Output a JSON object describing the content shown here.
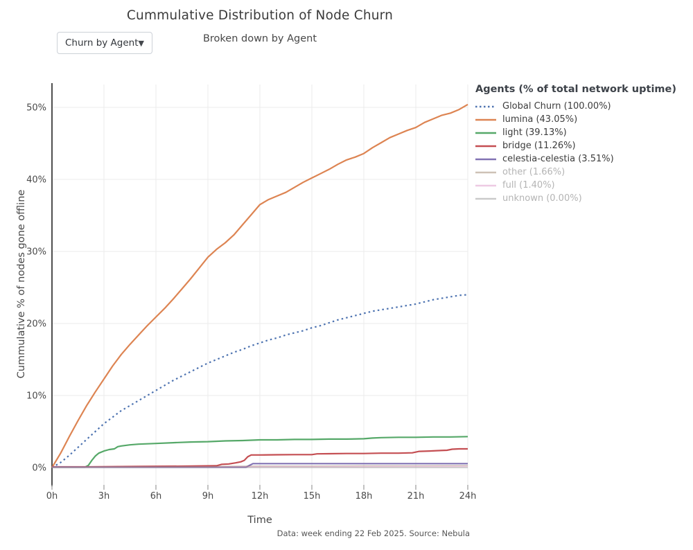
{
  "header": {
    "title": "Cummulative Distribution of Node Churn",
    "subtitle": "Broken down by Agent",
    "dropdown_label": "Churn by Agent",
    "dropdown_caret": "▼"
  },
  "footer": {
    "caption": "Data: week ending 22 Feb 2025. Source: Nebula"
  },
  "colors": {
    "grid": "#ebebeb",
    "axis_spine": "#3a3a3a",
    "tick_mark": "#9a9a9a",
    "tick_label": "#494949",
    "muted_legend_text": "#b4b4b4"
  },
  "chart_data": {
    "type": "line",
    "title": "Cummulative Distribution of Node Churn",
    "subtitle": "Broken down by Agent",
    "xlabel": "Time",
    "ylabel": "Cummulative % of nodes gone offline",
    "legend_title": "Agents (% of total network uptime)",
    "legend_position": "upper right, outside plot",
    "grid": true,
    "xlim": [
      0,
      24
    ],
    "ylim": [
      -2.5,
      53
    ],
    "x_tick_hours": [
      0,
      3,
      6,
      9,
      12,
      15,
      18,
      21,
      24
    ],
    "x_ticks": [
      "0h",
      "3h",
      "6h",
      "9h",
      "12h",
      "15h",
      "18h",
      "21h",
      "24h"
    ],
    "y_tick_values": [
      0,
      10,
      20,
      30,
      40,
      50
    ],
    "y_ticks": [
      "0%",
      "10%",
      "20%",
      "30%",
      "40%",
      "50%"
    ],
    "series": [
      {
        "name": "Global Churn",
        "legend_label": "Global Churn (100.00%)",
        "uptime_share_pct": 100.0,
        "color": "#4C72B0",
        "dash": "dotted",
        "muted": false,
        "points": [
          [
            0,
            0
          ],
          [
            0.5,
            0.7
          ],
          [
            1,
            1.7
          ],
          [
            1.5,
            2.8
          ],
          [
            2,
            3.9
          ],
          [
            2.5,
            5.0
          ],
          [
            3,
            6.1
          ],
          [
            3.5,
            7.0
          ],
          [
            4,
            7.9
          ],
          [
            4.5,
            8.6
          ],
          [
            5,
            9.3
          ],
          [
            5.5,
            10.0
          ],
          [
            6,
            10.7
          ],
          [
            6.5,
            11.4
          ],
          [
            7,
            12.1
          ],
          [
            7.5,
            12.7
          ],
          [
            8,
            13.3
          ],
          [
            8.5,
            13.9
          ],
          [
            9,
            14.5
          ],
          [
            9.5,
            15.0
          ],
          [
            10,
            15.5
          ],
          [
            10.5,
            16.0
          ],
          [
            11,
            16.4
          ],
          [
            11.5,
            16.9
          ],
          [
            12,
            17.3
          ],
          [
            12.5,
            17.7
          ],
          [
            13,
            18.0
          ],
          [
            13.5,
            18.4
          ],
          [
            14,
            18.7
          ],
          [
            14.5,
            19.0
          ],
          [
            15,
            19.4
          ],
          [
            15.5,
            19.7
          ],
          [
            16,
            20.1
          ],
          [
            16.5,
            20.5
          ],
          [
            17,
            20.8
          ],
          [
            17.5,
            21.1
          ],
          [
            18,
            21.4
          ],
          [
            18.5,
            21.7
          ],
          [
            19,
            21.9
          ],
          [
            19.5,
            22.1
          ],
          [
            20,
            22.3
          ],
          [
            20.5,
            22.5
          ],
          [
            21,
            22.7
          ],
          [
            21.5,
            23.0
          ],
          [
            22,
            23.3
          ],
          [
            22.5,
            23.5
          ],
          [
            23,
            23.7
          ],
          [
            23.5,
            23.9
          ],
          [
            24,
            24.0
          ]
        ]
      },
      {
        "name": "lumina",
        "legend_label": "lumina (43.05%)",
        "uptime_share_pct": 43.05,
        "color": "#DD8452",
        "dash": "solid",
        "muted": false,
        "points": [
          [
            0,
            0
          ],
          [
            0.5,
            2.0
          ],
          [
            1,
            4.3
          ],
          [
            1.5,
            6.5
          ],
          [
            2,
            8.6
          ],
          [
            2.5,
            10.5
          ],
          [
            3,
            12.3
          ],
          [
            3.5,
            14.1
          ],
          [
            4,
            15.7
          ],
          [
            4.5,
            17.1
          ],
          [
            5,
            18.4
          ],
          [
            5.5,
            19.7
          ],
          [
            6,
            20.9
          ],
          [
            6.5,
            22.1
          ],
          [
            7,
            23.4
          ],
          [
            7.5,
            24.8
          ],
          [
            8,
            26.2
          ],
          [
            8.5,
            27.7
          ],
          [
            9,
            29.2
          ],
          [
            9.5,
            30.3
          ],
          [
            10,
            31.2
          ],
          [
            10.5,
            32.3
          ],
          [
            11,
            33.7
          ],
          [
            11.5,
            35.1
          ],
          [
            12,
            36.5
          ],
          [
            12.5,
            37.2
          ],
          [
            13,
            37.7
          ],
          [
            13.5,
            38.2
          ],
          [
            14,
            38.9
          ],
          [
            14.5,
            39.6
          ],
          [
            15,
            40.2
          ],
          [
            15.5,
            40.8
          ],
          [
            16,
            41.4
          ],
          [
            16.5,
            42.1
          ],
          [
            17,
            42.7
          ],
          [
            17.5,
            43.1
          ],
          [
            18,
            43.6
          ],
          [
            18.5,
            44.4
          ],
          [
            19,
            45.1
          ],
          [
            19.5,
            45.8
          ],
          [
            20,
            46.3
          ],
          [
            20.5,
            46.8
          ],
          [
            21,
            47.2
          ],
          [
            21.5,
            47.9
          ],
          [
            22,
            48.4
          ],
          [
            22.5,
            48.9
          ],
          [
            23,
            49.2
          ],
          [
            23.5,
            49.7
          ],
          [
            24,
            50.4
          ]
        ]
      },
      {
        "name": "light",
        "legend_label": "light (39.13%)",
        "uptime_share_pct": 39.13,
        "color": "#55A868",
        "dash": "solid",
        "muted": false,
        "points": [
          [
            0,
            0.05
          ],
          [
            1,
            0.05
          ],
          [
            1.9,
            0.05
          ],
          [
            2.1,
            0.3
          ],
          [
            2.3,
            1.0
          ],
          [
            2.5,
            1.6
          ],
          [
            2.7,
            2.0
          ],
          [
            3,
            2.3
          ],
          [
            3.3,
            2.5
          ],
          [
            3.6,
            2.6
          ],
          [
            3.8,
            2.9
          ],
          [
            4,
            3.0
          ],
          [
            4.5,
            3.15
          ],
          [
            5,
            3.25
          ],
          [
            6,
            3.35
          ],
          [
            7,
            3.45
          ],
          [
            8,
            3.55
          ],
          [
            9,
            3.6
          ],
          [
            10,
            3.7
          ],
          [
            11,
            3.75
          ],
          [
            12,
            3.85
          ],
          [
            13,
            3.85
          ],
          [
            14,
            3.9
          ],
          [
            15,
            3.9
          ],
          [
            16,
            3.95
          ],
          [
            17,
            3.95
          ],
          [
            18,
            4.0
          ],
          [
            18.5,
            4.1
          ],
          [
            19,
            4.15
          ],
          [
            20,
            4.2
          ],
          [
            21,
            4.2
          ],
          [
            22,
            4.25
          ],
          [
            23,
            4.25
          ],
          [
            24,
            4.3
          ]
        ]
      },
      {
        "name": "bridge",
        "legend_label": "bridge (11.26%)",
        "uptime_share_pct": 11.26,
        "color": "#C44E52",
        "dash": "solid",
        "muted": false,
        "points": [
          [
            0,
            0.1
          ],
          [
            2,
            0.1
          ],
          [
            5,
            0.15
          ],
          [
            8,
            0.2
          ],
          [
            9.5,
            0.25
          ],
          [
            9.8,
            0.45
          ],
          [
            10.2,
            0.5
          ],
          [
            10.6,
            0.65
          ],
          [
            10.9,
            0.8
          ],
          [
            11.1,
            1.0
          ],
          [
            11.3,
            1.5
          ],
          [
            11.5,
            1.75
          ],
          [
            12,
            1.75
          ],
          [
            13,
            1.78
          ],
          [
            14,
            1.8
          ],
          [
            15,
            1.8
          ],
          [
            15.3,
            1.9
          ],
          [
            16,
            1.92
          ],
          [
            17,
            1.95
          ],
          [
            18,
            1.95
          ],
          [
            19,
            2.0
          ],
          [
            20,
            2.0
          ],
          [
            20.8,
            2.05
          ],
          [
            21.2,
            2.25
          ],
          [
            21.8,
            2.3
          ],
          [
            22.2,
            2.35
          ],
          [
            22.8,
            2.4
          ],
          [
            23.1,
            2.55
          ],
          [
            23.5,
            2.6
          ],
          [
            24,
            2.6
          ]
        ]
      },
      {
        "name": "celestia-celestia",
        "legend_label": "celestia-celestia (3.51%)",
        "uptime_share_pct": 3.51,
        "color": "#8172B3",
        "dash": "solid",
        "muted": false,
        "points": [
          [
            0,
            0.05
          ],
          [
            5,
            0.05
          ],
          [
            10,
            0.05
          ],
          [
            11.2,
            0.05
          ],
          [
            11.4,
            0.3
          ],
          [
            11.6,
            0.55
          ],
          [
            12,
            0.55
          ],
          [
            15,
            0.55
          ],
          [
            18,
            0.55
          ],
          [
            21,
            0.55
          ],
          [
            24,
            0.55
          ]
        ]
      },
      {
        "name": "other",
        "legend_label": "other (1.66%)",
        "uptime_share_pct": 1.66,
        "color": "#937860",
        "dash": "solid",
        "muted": true,
        "points": [
          [
            0,
            0.05
          ],
          [
            6,
            0.1
          ],
          [
            9,
            0.12
          ],
          [
            10,
            0.18
          ],
          [
            12,
            0.22
          ],
          [
            15,
            0.22
          ],
          [
            18,
            0.25
          ],
          [
            21,
            0.25
          ],
          [
            24,
            0.28
          ]
        ]
      },
      {
        "name": "full",
        "legend_label": "full (1.40%)",
        "uptime_share_pct": 1.4,
        "color": "#DA8BC3",
        "dash": "solid",
        "muted": true,
        "points": [
          [
            0,
            0.03
          ],
          [
            8,
            0.06
          ],
          [
            11,
            0.1
          ],
          [
            12,
            0.12
          ],
          [
            16,
            0.12
          ],
          [
            20,
            0.14
          ],
          [
            24,
            0.15
          ]
        ]
      },
      {
        "name": "unknown",
        "legend_label": "unknown (0.00%)",
        "uptime_share_pct": 0.0,
        "color": "#8C8C8C",
        "dash": "solid",
        "muted": true,
        "points": [
          [
            0,
            0.0
          ],
          [
            12,
            0.0
          ],
          [
            24,
            0.0
          ]
        ]
      }
    ]
  }
}
